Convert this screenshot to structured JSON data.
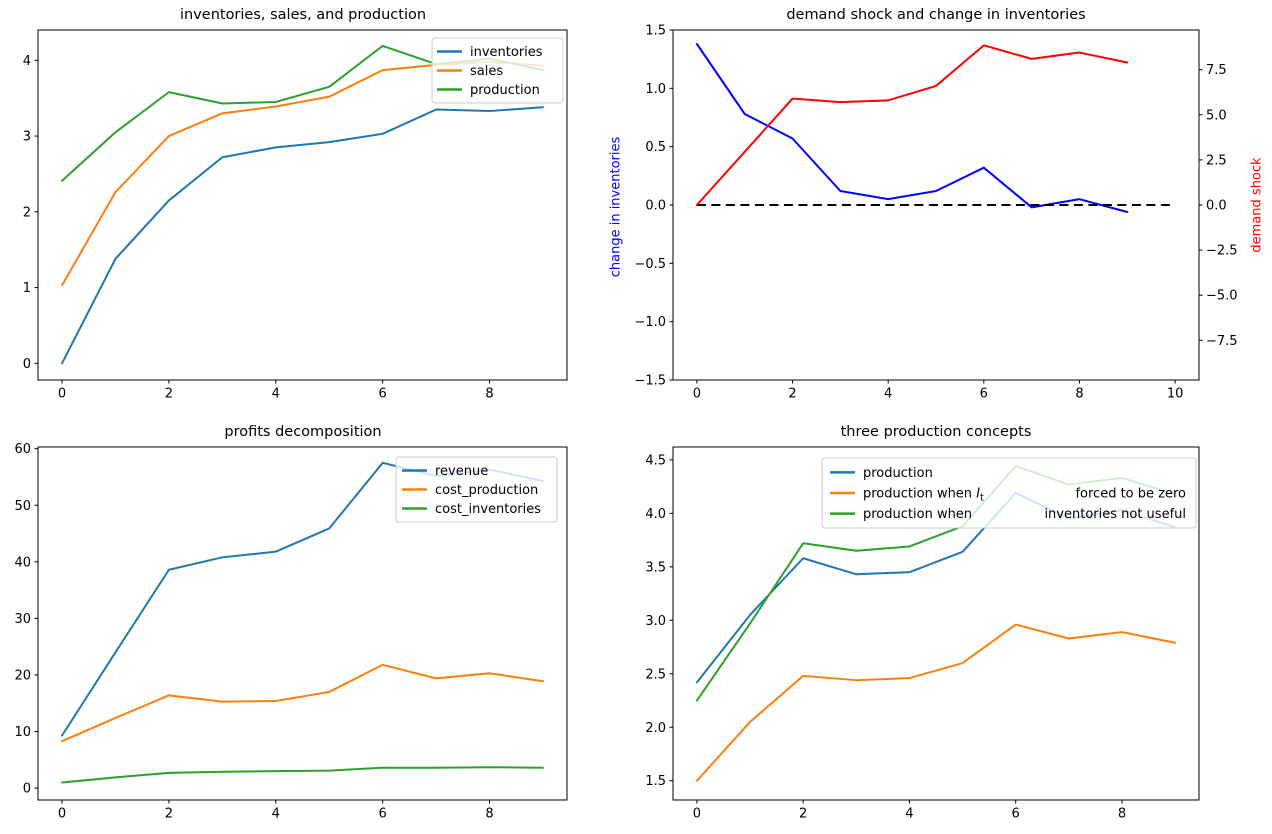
{
  "figure": {
    "background": "#ffffff",
    "colors": {
      "mpl_blue": "#1f77b4",
      "mpl_orange": "#ff7f0e",
      "mpl_green": "#2ca02c",
      "pure_blue": "#0000ff",
      "pure_red": "#ff0000",
      "black": "#000000"
    }
  },
  "chart_data": [
    {
      "id": "inventories-sales-production",
      "type": "line",
      "title": "inventories, sales, and production",
      "x": [
        0,
        1,
        2,
        3,
        4,
        5,
        6,
        7,
        8,
        9
      ],
      "series": [
        {
          "name": "inventories",
          "color": "#1f77b4",
          "values": [
            0.0,
            1.38,
            2.15,
            2.72,
            2.85,
            2.92,
            3.03,
            3.35,
            3.33,
            3.38
          ]
        },
        {
          "name": "sales",
          "color": "#ff7f0e",
          "values": [
            1.03,
            2.26,
            3.0,
            3.3,
            3.39,
            3.52,
            3.87,
            3.94,
            3.98,
            3.93
          ]
        },
        {
          "name": "production",
          "color": "#2ca02c",
          "values": [
            2.41,
            3.05,
            3.58,
            3.43,
            3.45,
            3.65,
            4.19,
            3.95,
            4.02,
            3.87
          ]
        }
      ],
      "xlim": [
        -0.45,
        9.45
      ],
      "ylim": [
        -0.22,
        4.4
      ],
      "xticks": {
        "values": [
          0,
          2,
          4,
          6,
          8
        ],
        "labels": [
          "0",
          "2",
          "4",
          "6",
          "8"
        ]
      },
      "yticks": {
        "values": [
          0,
          1,
          2,
          3,
          4
        ],
        "labels": [
          "0",
          "1",
          "2",
          "3",
          "4"
        ]
      },
      "grid": false,
      "legend": {
        "position": "upper right",
        "entries": [
          {
            "color": "#1f77b4",
            "parts": [
              {
                "t": "inventories"
              }
            ]
          },
          {
            "color": "#ff7f0e",
            "parts": [
              {
                "t": "sales"
              }
            ]
          },
          {
            "color": "#2ca02c",
            "parts": [
              {
                "t": "production"
              }
            ]
          }
        ]
      }
    },
    {
      "id": "demand-shock-and-change-in-inventories",
      "type": "line",
      "title": "demand shock and change in inventories",
      "x": [
        0,
        1,
        2,
        3,
        4,
        5,
        6,
        7,
        8,
        9
      ],
      "series": [
        {
          "name": "change in inventories",
          "axis": "left",
          "color": "#0000ff",
          "values": [
            1.38,
            0.78,
            0.57,
            0.12,
            0.05,
            0.12,
            0.32,
            -0.02,
            0.05,
            -0.06
          ]
        },
        {
          "name": "demand shock",
          "axis": "right",
          "color": "#ff0000",
          "values": [
            0.0,
            2.95,
            5.9,
            5.7,
            5.8,
            6.6,
            8.85,
            8.1,
            8.45,
            7.9
          ]
        }
      ],
      "ref_line": {
        "y": 0.0,
        "x_from": 0,
        "x_to": 10,
        "color": "#000000",
        "dashed": true,
        "axis": "left"
      },
      "xlim": [
        -0.5,
        10.5
      ],
      "ylim_left": [
        -1.5,
        1.5
      ],
      "ylim_right": [
        -9.7,
        9.7
      ],
      "xticks": {
        "values": [
          0,
          2,
          4,
          6,
          8,
          10
        ],
        "labels": [
          "0",
          "2",
          "4",
          "6",
          "8",
          "10"
        ]
      },
      "yticks": {
        "values": [
          -1.5,
          -1.0,
          -0.5,
          0.0,
          0.5,
          1.0,
          1.5
        ],
        "labels": [
          "−1.5",
          "−1.0",
          "−0.5",
          "0.0",
          "0.5",
          "1.0",
          "1.5"
        ]
      },
      "yticks_right": {
        "values": [
          -7.5,
          -5.0,
          -2.5,
          0.0,
          2.5,
          5.0,
          7.5
        ],
        "labels": [
          "−7.5",
          "−5.0",
          "−2.5",
          "0.0",
          "2.5",
          "5.0",
          "7.5"
        ]
      },
      "ylabel_left": {
        "text": "change in inventories",
        "color": "#0000ff"
      },
      "ylabel_right": {
        "text": "demand shock",
        "color": "#ff0000"
      },
      "grid": false
    },
    {
      "id": "profits-decomposition",
      "type": "line",
      "title": "profits decomposition",
      "x": [
        0,
        1,
        2,
        3,
        4,
        5,
        6,
        7,
        8,
        9
      ],
      "series": [
        {
          "name": "revenue",
          "color": "#1f77b4",
          "values": [
            9.3,
            24.0,
            38.6,
            40.8,
            41.8,
            45.9,
            57.5,
            55.2,
            56.3,
            54.3
          ]
        },
        {
          "name": "cost_production",
          "color": "#ff7f0e",
          "values": [
            8.3,
            12.4,
            16.4,
            15.3,
            15.4,
            17.0,
            21.8,
            19.4,
            20.3,
            18.9
          ]
        },
        {
          "name": "cost_inventories",
          "color": "#2ca02c",
          "values": [
            1.0,
            1.9,
            2.7,
            2.9,
            3.0,
            3.1,
            3.6,
            3.6,
            3.7,
            3.6
          ]
        }
      ],
      "xlim": [
        -0.45,
        9.45
      ],
      "ylim": [
        -2.1,
        60.3
      ],
      "xticks": {
        "values": [
          0,
          2,
          4,
          6,
          8
        ],
        "labels": [
          "0",
          "2",
          "4",
          "6",
          "8"
        ]
      },
      "yticks": {
        "values": [
          0,
          10,
          20,
          30,
          40,
          50,
          60
        ],
        "labels": [
          "0",
          "10",
          "20",
          "30",
          "40",
          "50",
          "60"
        ]
      },
      "grid": false,
      "legend": {
        "position": "upper right",
        "entries": [
          {
            "color": "#1f77b4",
            "parts": [
              {
                "t": "revenue"
              }
            ]
          },
          {
            "color": "#ff7f0e",
            "parts": [
              {
                "t": "cost_production"
              }
            ]
          },
          {
            "color": "#2ca02c",
            "parts": [
              {
                "t": "cost_inventories"
              }
            ]
          }
        ]
      }
    },
    {
      "id": "three-production-concepts",
      "type": "line",
      "title": "three production concepts",
      "x": [
        0,
        1,
        2,
        3,
        4,
        5,
        6,
        7,
        8,
        9
      ],
      "series": [
        {
          "name": "production",
          "color": "#1f77b4",
          "values": [
            2.42,
            3.05,
            3.58,
            3.43,
            3.45,
            3.64,
            4.19,
            3.95,
            4.03,
            3.87
          ]
        },
        {
          "name": "production when I_t forced to be zero",
          "color": "#ff7f0e",
          "values": [
            1.5,
            2.05,
            2.48,
            2.44,
            2.46,
            2.6,
            2.96,
            2.83,
            2.89,
            2.79
          ]
        },
        {
          "name": "production when inventories not useful",
          "color": "#2ca02c",
          "values": [
            2.25,
            2.97,
            3.72,
            3.65,
            3.69,
            3.88,
            4.44,
            4.27,
            4.33,
            4.18
          ]
        }
      ],
      "xlim": [
        -0.45,
        9.45
      ],
      "ylim": [
        1.32,
        4.62
      ],
      "xticks": {
        "values": [
          0,
          2,
          4,
          6,
          8
        ],
        "labels": [
          "0",
          "2",
          "4",
          "6",
          "8"
        ]
      },
      "yticks": {
        "values": [
          1.5,
          2.0,
          2.5,
          3.0,
          3.5,
          4.0,
          4.5
        ],
        "labels": [
          "1.5",
          "2.0",
          "2.5",
          "3.0",
          "3.5",
          "4.0",
          "4.5"
        ]
      },
      "grid": false,
      "legend": {
        "position": "upper center wide",
        "entries": [
          {
            "color": "#1f77b4",
            "parts": [
              {
                "t": "production"
              }
            ]
          },
          {
            "color": "#ff7f0e",
            "parts": [
              {
                "t": "production when  "
              },
              {
                "t": "I",
                "style": "italic"
              },
              {
                "t": "t",
                "style": "sub"
              }
            ],
            "post": "forced to be zero"
          },
          {
            "color": "#2ca02c",
            "parts": [
              {
                "t": "production when"
              }
            ],
            "post": "inventories not useful"
          }
        ]
      }
    }
  ]
}
